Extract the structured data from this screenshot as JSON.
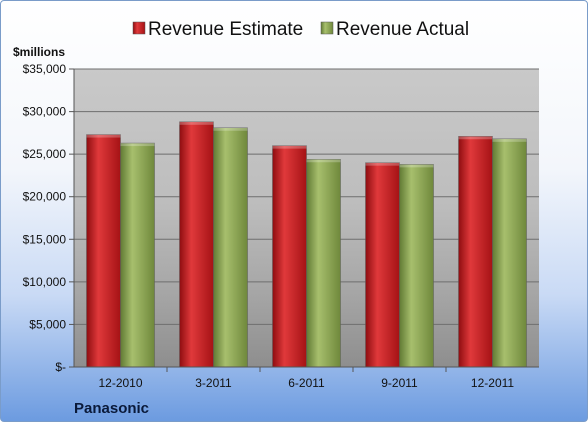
{
  "chart_data": {
    "type": "bar",
    "ylabel": "$millions",
    "company": "Panasonic",
    "categories": [
      "12-2010",
      "3-2011",
      "6-2011",
      "9-2011",
      "12-2011"
    ],
    "series": [
      {
        "name": "Revenue Estimate",
        "color": "#c0181b",
        "values": [
          27300,
          28800,
          26000,
          24000,
          27100
        ]
      },
      {
        "name": "Revenue Actual",
        "color": "#8ba352",
        "values": [
          26300,
          28100,
          24400,
          23800,
          26800
        ]
      }
    ],
    "ylim": [
      0,
      35000
    ],
    "yticks": [
      0,
      5000,
      10000,
      15000,
      20000,
      25000,
      30000,
      35000
    ],
    "ytick_labels": [
      "$-",
      "$5,000",
      "$10,000",
      "$15,000",
      "$20,000",
      "$25,000",
      "$30,000",
      "$35,000"
    ],
    "grid": true,
    "legend_position": "top"
  }
}
